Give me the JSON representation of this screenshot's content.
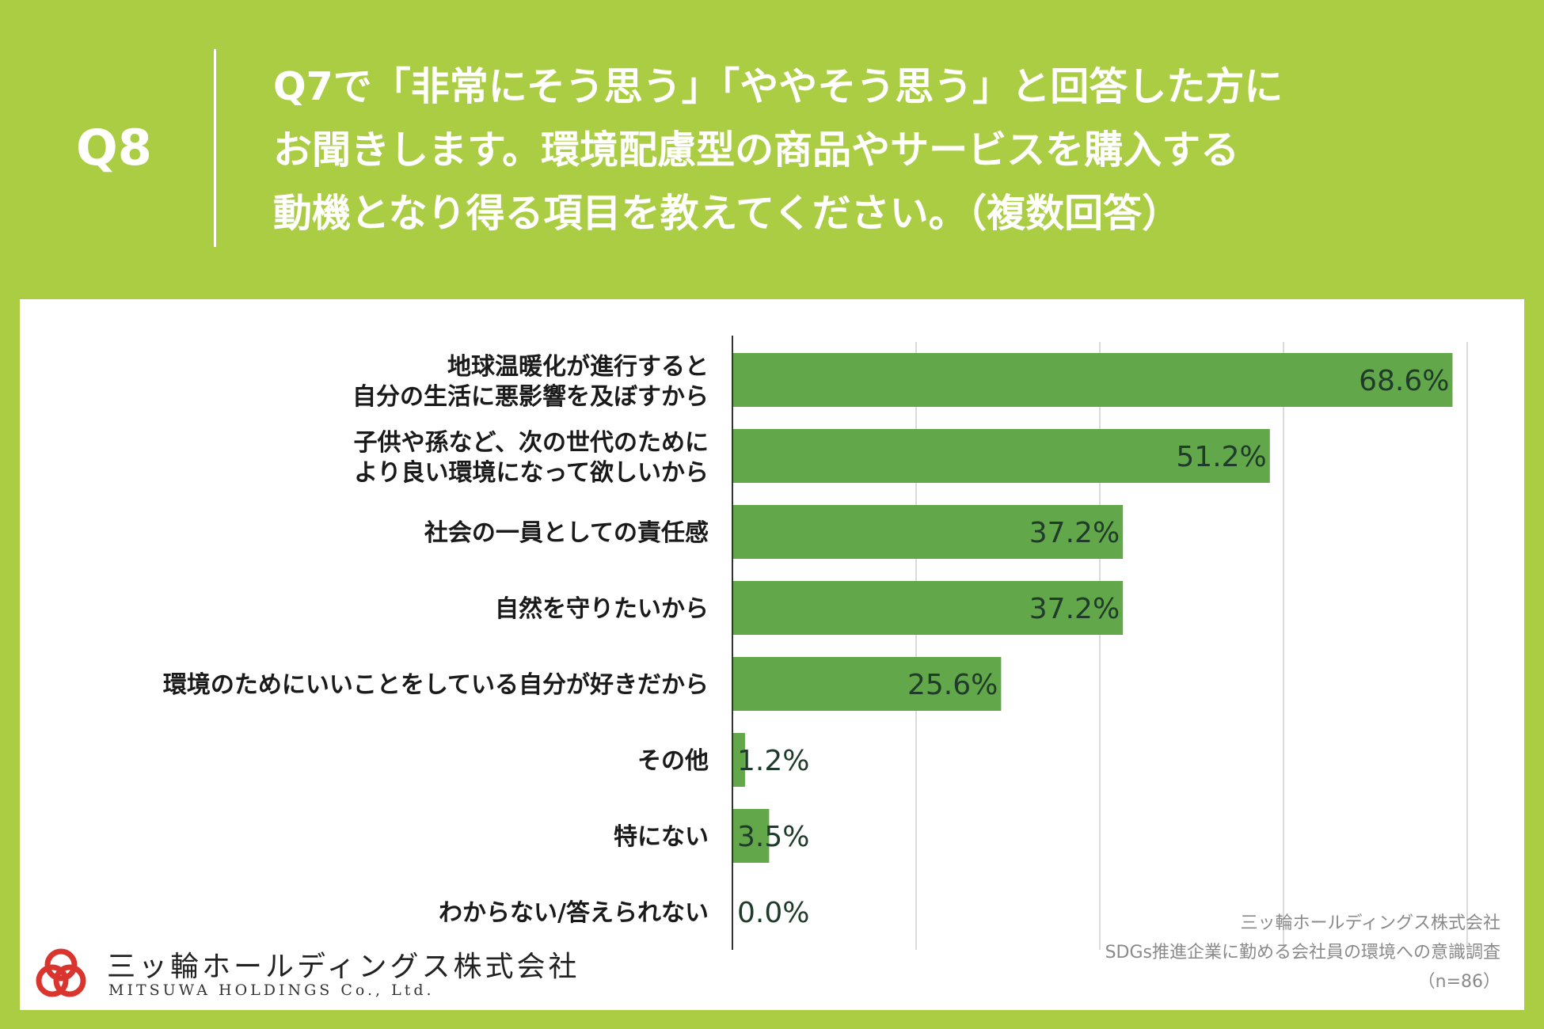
{
  "header": {
    "question_number": "Q8",
    "question_lines": [
      "Q7で「非常にそう思う」「ややそう思う」と回答した方に",
      "お聞きします。環境配慮型の商品やサービスを購入する",
      "動機となり得る項目を教えてください。（複数回答）"
    ]
  },
  "chart_data": {
    "type": "bar",
    "orientation": "horizontal",
    "categories": [
      [
        "地球温暖化が進行すると",
        "自分の生活に悪影響を及ぼすから"
      ],
      [
        "子供や孫など、次の世代のために",
        "より良い環境になって欲しいから"
      ],
      [
        "社会の一員としての責任感"
      ],
      [
        "自然を守りたいから"
      ],
      [
        "環境のためにいいことをしている自分が好きだから"
      ],
      [
        "その他"
      ],
      [
        "特にない"
      ],
      [
        "わからない/答えられない"
      ]
    ],
    "values": [
      68.6,
      51.2,
      37.2,
      37.2,
      25.6,
      1.2,
      3.5,
      0.0
    ],
    "value_labels": [
      "68.6%",
      "51.2%",
      "37.2%",
      "37.2%",
      "25.6%",
      "1.2%",
      "3.5%",
      "0.0%"
    ],
    "xlim": [
      0,
      70
    ],
    "grid_step": 17.5,
    "grid": true,
    "bar_color": "#62a74a",
    "label_color": "#1f3b2a",
    "grid_color": "#cfcfcf",
    "axis_color": "#333333"
  },
  "source": {
    "line1": "三ッ輪ホールディングス株式会社",
    "line2": "SDGs推進企業に勤める会社員の環境への意識調査",
    "line3": "（n=86）"
  },
  "logo": {
    "name_jp": "三ッ輪ホールディングス株式会社",
    "name_en": "MITSUWA HOLDINGS Co., Ltd.",
    "mark_color": "#d9352e"
  }
}
